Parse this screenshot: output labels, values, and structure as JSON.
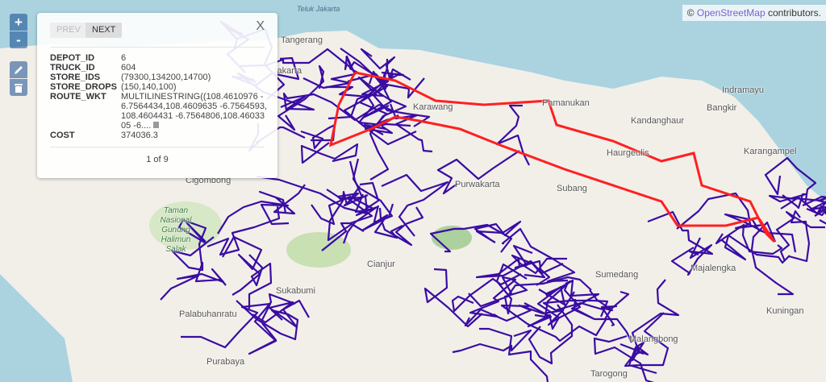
{
  "attribution": {
    "symbol": "©",
    "link": "OpenStreetMap",
    "suffix": " contributors."
  },
  "controls": {
    "zoom_in": "+",
    "zoom_out": "-",
    "edit_icon": "pencil-icon",
    "delete_icon": "trash-icon"
  },
  "popup": {
    "prev": "PREV",
    "next": "NEXT",
    "close": "X",
    "fields": [
      {
        "key": "DEPOT_ID",
        "value": "6"
      },
      {
        "key": "TRUCK_ID",
        "value": "604"
      },
      {
        "key": "STORE_IDS",
        "value": "(79300,134200,14700)"
      },
      {
        "key": "STORE_DROPS",
        "value": "(150,140,100)"
      },
      {
        "key": "ROUTE_WKT",
        "value": "MULTILINESTRING((108.4610976 -6.7564434,108.4609635 -6.7564593,108.4604431 -6.7564806,108.4603305 -6...."
      },
      {
        "key": "COST",
        "value": "374036.3"
      }
    ],
    "pager": "1 of 9"
  },
  "map": {
    "colors": {
      "sea": "#aad3df",
      "land": "#f2efe9",
      "routes": "#3a0ca3",
      "selected_route": "#ff2020"
    },
    "labels": [
      "Teluk Jakarta",
      "Tangerang",
      "Jakarta",
      "Karawang",
      "Pamanukan",
      "Indramayu",
      "Kandanghaur",
      "Bangkir",
      "Karangampel",
      "Haurgeulis",
      "Purwakarta",
      "Subang",
      "Taman Nasional Gunung Halimun Salak",
      "Cianjur",
      "Sukabumi",
      "Sumedang",
      "Majalengka",
      "Kuningan",
      "Palabuhanratu",
      "Malangbong",
      "Purabaya",
      "Tarogong",
      "Cigombong"
    ]
  }
}
